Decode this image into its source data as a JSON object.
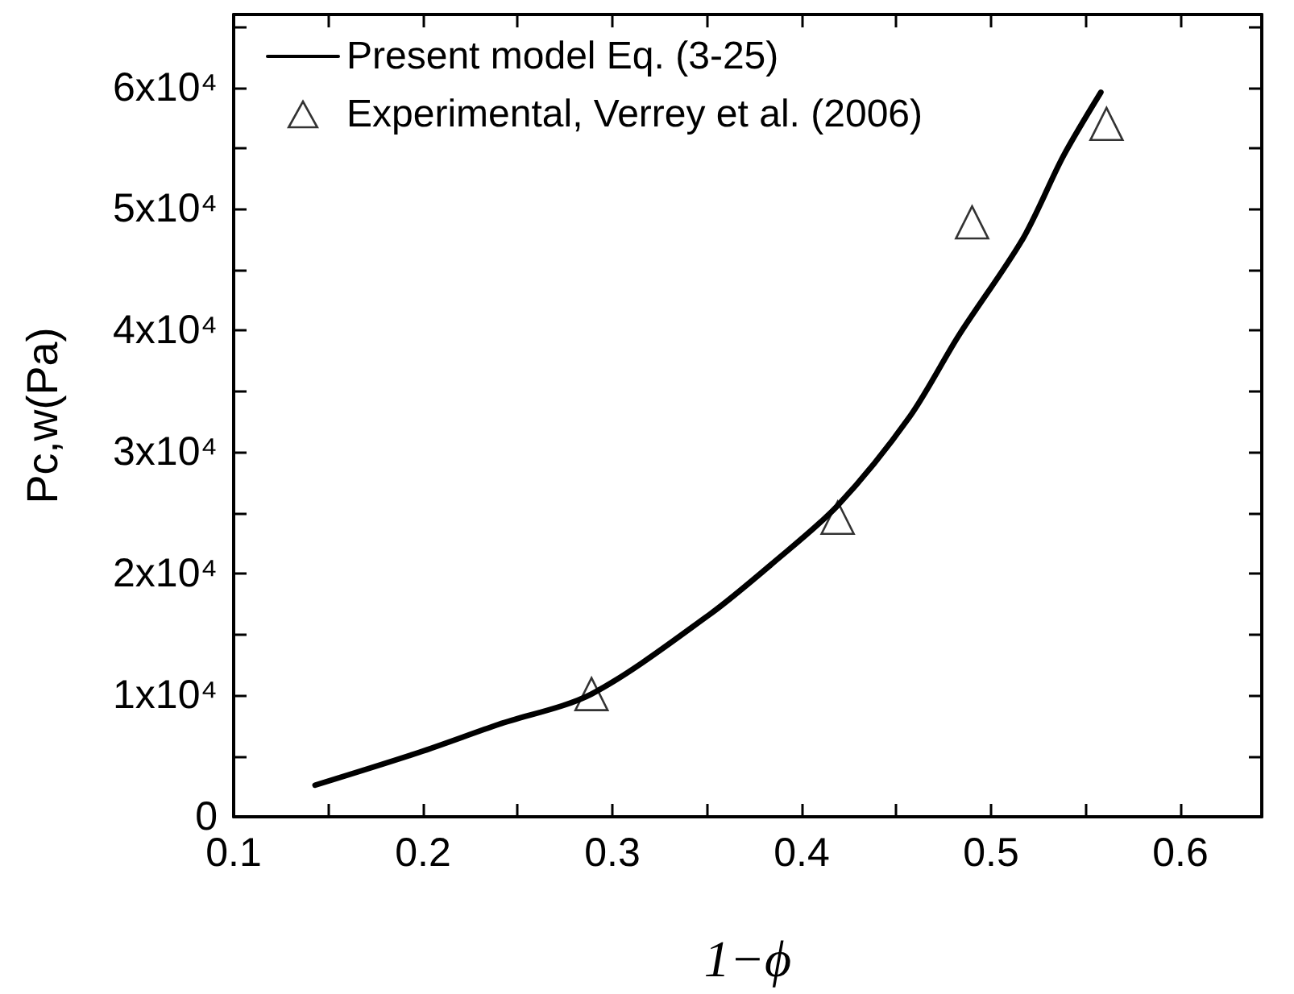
{
  "chart_data": {
    "type": "line",
    "xlabel": "1−ϕ",
    "ylabel": "Pc,w(Pa)",
    "xlim": [
      0.1,
      0.643
    ],
    "ylim": [
      0,
      66000
    ],
    "xticks": [
      0.1,
      {
        "value": 0.15,
        "label": null
      },
      0.2,
      {
        "value": 0.25,
        "label": null
      },
      0.3,
      {
        "value": 0.35,
        "label": null
      },
      0.4,
      {
        "value": 0.45,
        "label": null
      },
      0.5,
      {
        "value": 0.55,
        "label": null
      },
      0.6
    ],
    "yticks": [
      0,
      {
        "value": 5000,
        "label": null
      },
      {
        "value": 10000,
        "label": "1x10⁴"
      },
      {
        "value": 15000,
        "label": null
      },
      {
        "value": 20000,
        "label": "2x10⁴"
      },
      {
        "value": 25000,
        "label": null
      },
      {
        "value": 30000,
        "label": "3x10⁴"
      },
      {
        "value": 35000,
        "label": null
      },
      {
        "value": 40000,
        "label": "4x10⁴"
      },
      {
        "value": 45000,
        "label": null
      },
      {
        "value": 50000,
        "label": "5x10⁴"
      },
      {
        "value": 55000,
        "label": null
      },
      {
        "value": 60000,
        "label": "6x10⁴"
      },
      {
        "value": 65000,
        "label": null
      }
    ],
    "grid": false,
    "legend": "top left",
    "series": [
      {
        "name": "Present model Eq. (3-25)",
        "color": "#000000",
        "marker": "none",
        "line_style": "solid",
        "x": [
          0.143,
          0.198,
          0.24,
          0.289,
          0.351,
          0.385,
          0.419,
          0.457,
          0.483,
          0.517,
          0.538,
          0.558
        ],
        "values": [
          2600,
          5300,
          7600,
          10100,
          16600,
          20900,
          25600,
          32900,
          39600,
          47600,
          54300,
          59600
        ]
      },
      {
        "name": "Experimental, Verrey et al. (2006)",
        "type": "scatter",
        "color": "#000000",
        "marker": "triangle",
        "x": [
          0.289,
          0.419,
          0.49,
          0.561
        ],
        "values": [
          10100,
          24600,
          48900,
          57000
        ]
      }
    ]
  }
}
